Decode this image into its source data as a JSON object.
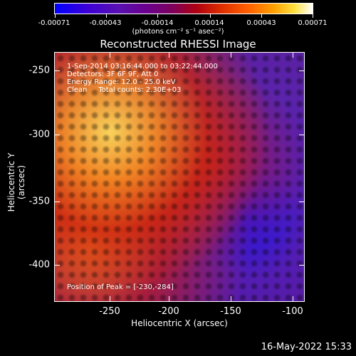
{
  "colorbar": {
    "tick_labels": [
      "-0.00071",
      "-0.00043",
      "-0.00014",
      "0.00014",
      "0.00043",
      "0.00071"
    ],
    "units": "(photons cm⁻² s⁻¹ asec⁻²)"
  },
  "title": "Reconstructed RHESSI Image",
  "info": {
    "line1": "1-Sep-2014 03:16:44.000 to 03:22:44.000",
    "line2": "Detectors: 3F 6F 9F, Att 0",
    "line3": "Energy Range: 12.0 - 25.0 keV",
    "line4": "Clean     Total counts: 2.30E+03"
  },
  "peak": "Position of Peak = [-230,-284]",
  "axes": {
    "xlabel": "Heliocentric X (arcsec)",
    "ylabel": "Heliocentric Y (arcsec)",
    "xticks": [
      "-250",
      "-200",
      "-150",
      "-100"
    ],
    "yticks": [
      "-250",
      "-300",
      "-350",
      "-400"
    ]
  },
  "footer": "16-May-2022 15:33"
}
